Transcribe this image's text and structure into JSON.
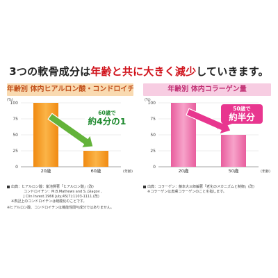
{
  "headline": {
    "pre": "3つの軟骨成分は",
    "highlight": "年齢と共に大きく減少",
    "post": "していきます。"
  },
  "colors": {
    "headline_accent": "#d0121b",
    "left_bar": "#f29417",
    "left_arrow": "#63b33a",
    "left_title_text": "#c2501b",
    "right_bar": "#ec6fa8",
    "right_arrow": "#e8368f",
    "right_title_text": "#c12f73"
  },
  "chart_data": [
    {
      "type": "bar",
      "title": "年齢別 体内ヒアルロン酸・コンドロイチン量",
      "categories": [
        "20歳",
        "60歳"
      ],
      "values": [
        100,
        25
      ],
      "ylim": [
        0,
        100
      ],
      "yticks": [
        0,
        25,
        50,
        75,
        100
      ],
      "unit_label": "(%)",
      "x_unit_label": "(年齢)",
      "callout": {
        "line1": "60歳で",
        "line2": "約4分の1"
      },
      "grid": true
    },
    {
      "type": "bar",
      "title": "年齢別 体内コラーゲン量",
      "categories": [
        "20歳",
        "50歳"
      ],
      "values": [
        100,
        50
      ],
      "ylim": [
        0,
        100
      ],
      "yticks": [
        0,
        25,
        50,
        75,
        100
      ],
      "unit_label": "(%)",
      "x_unit_label": "(年齢)",
      "callout": {
        "line1": "50歳で",
        "line2": "約半分"
      },
      "grid": true
    }
  ],
  "notes": {
    "left": [
      "出典：ヒアルロン酸：紫池賢著「ヒアルロン酸」(改)",
      "コンドロイチン：M.B.Mathews and S.,Glagov ,",
      "J Clin Invest.1966 July;45(7):1103-1111.(改)",
      "※表記上のコンドロイチンは硫酸化のことです。"
    ],
    "right": [
      "出典：コラーゲン：藤本大三郎編著「老化のメカニズムと制御」(改)",
      "※コラーゲンは皮膚コラーゲンのことを指します。"
    ],
    "bottom": "※ヒアルロン酸、コンドロイチンは機能性関与成分ではありません。"
  }
}
